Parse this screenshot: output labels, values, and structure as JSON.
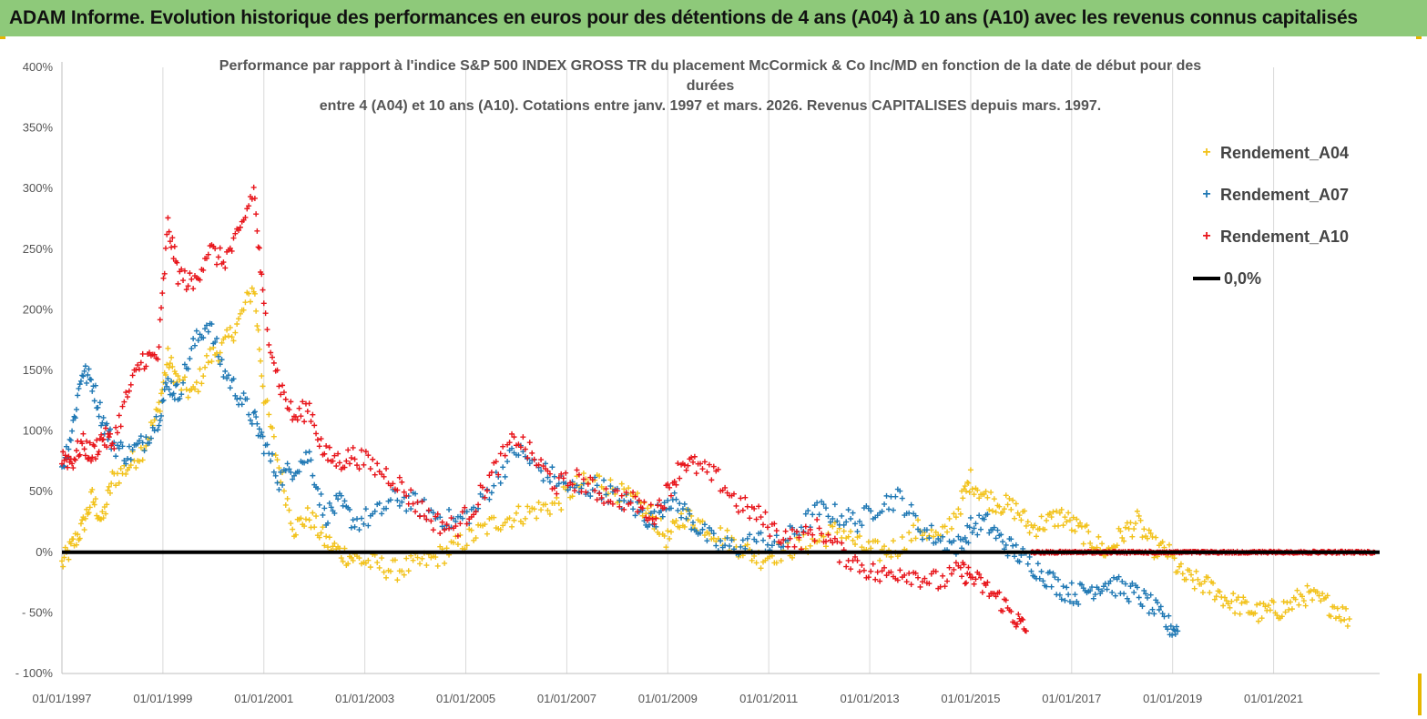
{
  "banner": {
    "title": "ADAM Informe. Evolution historique des performances en euros pour des détentions de 4 ans (A04) à 10 ans (A10) avec les revenus connus capitalisés"
  },
  "colors": {
    "banner_bg": "#8ec97a",
    "A04": "#f2c21b",
    "A07": "#1f78b4",
    "A10": "#e8151b",
    "zero": "#000000"
  },
  "chart_data": {
    "type": "scatter",
    "title_lines": [
      "Performance par rapport à l'indice S&P 500 INDEX GROSS TR  du placement McCormick & Co Inc/MD en fonction de la date de début pour des",
      "durées",
      "entre 4 (A04) et 10 ans (A10). Cotations entre janv. 1997 et mars. 2026. Revenus CAPITALISES depuis mars. 1997."
    ],
    "y_ticks": [
      "400%",
      "350%",
      "300%",
      "250%",
      "200%",
      "150%",
      "100%",
      "50%",
      "0%",
      "- 50%",
      "- 100%"
    ],
    "x_ticks": [
      "01/01/1997",
      "01/01/1999",
      "01/01/2001",
      "01/01/2003",
      "01/01/2005",
      "01/01/2007",
      "01/01/2009",
      "01/01/2011",
      "01/01/2013",
      "01/01/2015",
      "01/01/2017",
      "01/01/2019",
      "01/01/2021"
    ],
    "ylim": [
      -100,
      400
    ],
    "xlim": [
      1997.0,
      2023.1
    ],
    "legend": [
      "Rendement_A04",
      "Rendement_A07",
      "Rendement_A10",
      "0,0%"
    ],
    "legend_position": "top-right",
    "series": [
      {
        "name": "Rendement_A04",
        "x": [
          1997.0,
          1997.2,
          1997.4,
          1997.6,
          1997.8,
          1998.0,
          1998.3,
          1998.6,
          1998.9,
          1999.1,
          1999.3,
          1999.6,
          1999.9,
          2000.2,
          2000.5,
          2000.8,
          2001.0,
          2001.3,
          2001.6,
          2001.9,
          2002.2,
          2002.5,
          2002.8,
          2003.2,
          2003.6,
          2004.0,
          2004.4,
          2004.8,
          2005.2,
          2005.6,
          2006.0,
          2006.4,
          2006.8,
          2007.2,
          2007.6,
          2008.0,
          2008.4,
          2008.7,
          2009.0,
          2009.3,
          2009.6,
          2010.0,
          2010.4,
          2010.8,
          2011.2,
          2011.6,
          2012.0,
          2012.4,
          2012.8,
          2013.2,
          2013.6,
          2014.0,
          2014.4,
          2014.8,
          2015.0,
          2015.3,
          2015.6,
          2015.9,
          2016.2,
          2016.5,
          2016.8,
          2017.1,
          2017.4,
          2017.7,
          2018.0,
          2018.3,
          2018.6,
          2018.9,
          2019.2,
          2019.5,
          2019.8,
          2020.1,
          2020.4,
          2020.7,
          2021.0,
          2021.3,
          2021.6,
          2021.9,
          2022.2,
          2022.5
        ],
        "y": [
          -10,
          5,
          20,
          45,
          25,
          60,
          70,
          85,
          115,
          160,
          140,
          130,
          160,
          170,
          190,
          220,
          130,
          70,
          20,
          30,
          10,
          0,
          -5,
          -10,
          -15,
          -10,
          -5,
          5,
          15,
          25,
          30,
          35,
          40,
          55,
          60,
          50,
          40,
          30,
          10,
          30,
          25,
          15,
          5,
          -5,
          0,
          5,
          10,
          20,
          5,
          0,
          5,
          20,
          10,
          40,
          60,
          45,
          40,
          35,
          20,
          25,
          30,
          20,
          10,
          0,
          15,
          25,
          5,
          0,
          -20,
          -25,
          -30,
          -40,
          -45,
          -50,
          -48,
          -45,
          -35,
          -40,
          -45,
          -55
        ],
        "marker": "+"
      },
      {
        "name": "Rendement_A07",
        "x": [
          1997.0,
          1997.2,
          1997.4,
          1997.6,
          1997.8,
          1998.0,
          1998.3,
          1998.6,
          1998.9,
          1999.1,
          1999.3,
          1999.6,
          1999.9,
          2000.2,
          2000.5,
          2000.8,
          2001.0,
          2001.3,
          2001.6,
          2001.9,
          2002.2,
          2002.5,
          2002.8,
          2003.2,
          2003.6,
          2004.0,
          2004.4,
          2004.8,
          2005.2,
          2005.6,
          2006.0,
          2006.4,
          2006.8,
          2007.2,
          2007.6,
          2008.0,
          2008.4,
          2008.7,
          2009.0,
          2009.3,
          2009.6,
          2010.0,
          2010.4,
          2010.8,
          2011.2,
          2011.6,
          2012.0,
          2012.4,
          2012.8,
          2013.2,
          2013.6,
          2014.0,
          2014.4,
          2014.8,
          2015.0,
          2015.3,
          2015.6,
          2015.9,
          2016.2,
          2016.5,
          2016.8,
          2017.1,
          2017.4,
          2017.7,
          2018.0,
          2018.3,
          2018.6,
          2018.9,
          2019.1
        ],
        "y": [
          70,
          100,
          150,
          140,
          110,
          90,
          80,
          90,
          110,
          140,
          130,
          170,
          190,
          150,
          130,
          110,
          90,
          60,
          70,
          80,
          30,
          40,
          25,
          30,
          45,
          40,
          30,
          25,
          35,
          60,
          85,
          70,
          60,
          50,
          55,
          45,
          35,
          25,
          45,
          35,
          20,
          5,
          5,
          10,
          5,
          20,
          35,
          30,
          25,
          40,
          45,
          20,
          10,
          5,
          20,
          25,
          10,
          0,
          -10,
          -20,
          -30,
          -35,
          -30,
          -25,
          -30,
          -35,
          -45,
          -60,
          -65
        ],
        "marker": "+"
      },
      {
        "name": "Rendement_A10",
        "x": [
          1997.0,
          1997.2,
          1997.4,
          1997.6,
          1997.8,
          1998.0,
          1998.3,
          1998.6,
          1998.9,
          1999.1,
          1999.3,
          1999.6,
          1999.9,
          2000.2,
          2000.5,
          2000.8,
          2001.0,
          2001.3,
          2001.6,
          2001.9,
          2002.2,
          2002.5,
          2002.8,
          2003.2,
          2003.6,
          2004.0,
          2004.4,
          2004.8,
          2005.2,
          2005.6,
          2006.0,
          2006.4,
          2006.8,
          2007.2,
          2007.6,
          2008.0,
          2008.4,
          2008.7,
          2009.0,
          2009.3,
          2009.6,
          2010.0,
          2010.4,
          2010.8,
          2011.2,
          2011.6,
          2012.0,
          2012.4,
          2012.8,
          2013.2,
          2013.6,
          2014.0,
          2014.4,
          2014.8,
          2015.0,
          2015.3,
          2015.6,
          2015.9,
          2016.1
        ],
        "y": [
          80,
          75,
          90,
          80,
          95,
          90,
          130,
          160,
          160,
          270,
          230,
          220,
          250,
          240,
          260,
          300,
          200,
          140,
          110,
          120,
          80,
          75,
          80,
          70,
          60,
          40,
          25,
          20,
          40,
          70,
          95,
          75,
          55,
          60,
          50,
          45,
          40,
          30,
          50,
          75,
          70,
          60,
          40,
          30,
          15,
          10,
          20,
          0,
          -10,
          -20,
          -15,
          -20,
          -25,
          -15,
          -20,
          -30,
          -40,
          -55,
          -65
        ],
        "marker": "+"
      },
      {
        "name": "Rendement_A10",
        "x": [
          2016.2,
          2023.0
        ],
        "y": [
          0,
          0
        ],
        "flat": true,
        "marker": "+"
      }
    ]
  }
}
